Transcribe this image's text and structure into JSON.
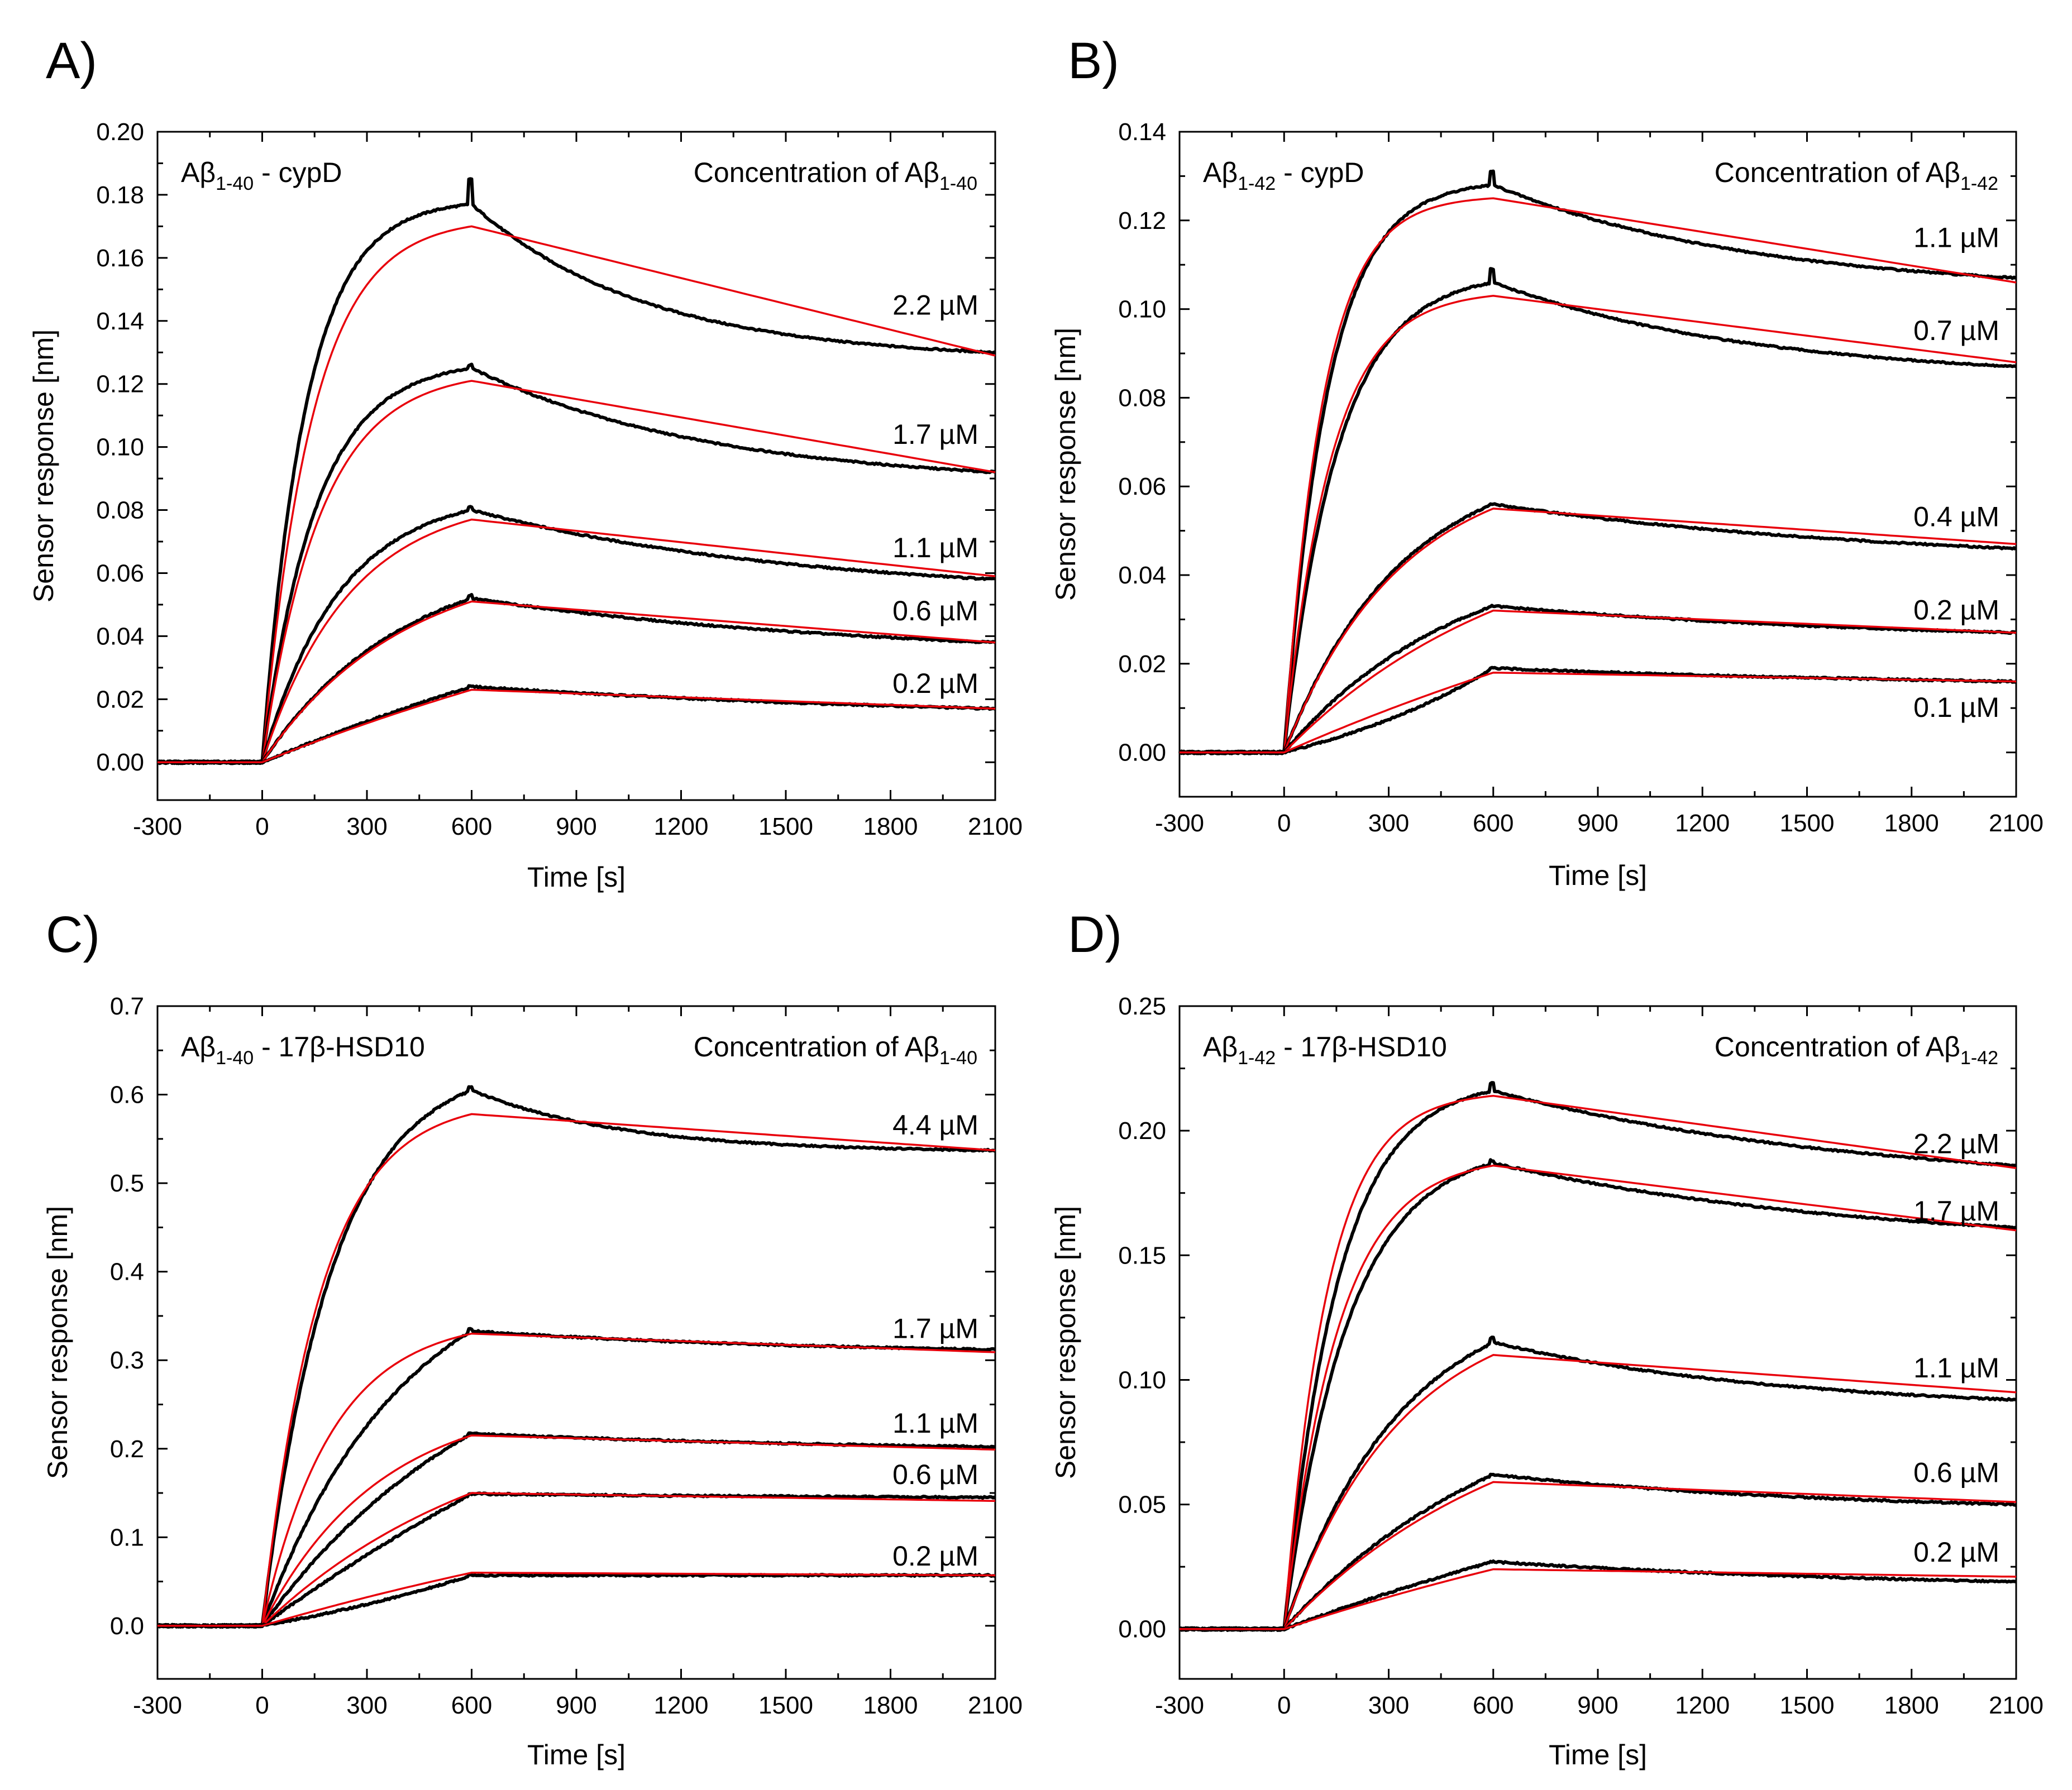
{
  "figure": {
    "description_colors": {
      "data": "#000000",
      "fit": "#e8000b"
    }
  },
  "chart_data": [
    {
      "type": "line",
      "panel": "A)",
      "label_main": "A",
      "label_beta": "β",
      "label_sub": "1-40",
      "label_suffix": " - cypD",
      "conc_title_main": "Concentration of A",
      "conc_title_beta": "β",
      "conc_title_sub": "1-40",
      "xlabel": "Time [s]",
      "ylabel": "Sensor response [nm]",
      "xlim": [
        -300,
        2100
      ],
      "ylim": [
        -0.012,
        0.2
      ],
      "xticks": [
        -300,
        0,
        300,
        600,
        900,
        1200,
        1500,
        1800,
        2100
      ],
      "xtick_labels": [
        "-300",
        "0",
        "300",
        "600",
        "900",
        "1200",
        "1500",
        "1800",
        "2100"
      ],
      "yticks": [
        0.0,
        0.02,
        0.04,
        0.06,
        0.08,
        0.1,
        0.12,
        0.14,
        0.16,
        0.18,
        0.2
      ],
      "ytick_labels": [
        "0.00",
        "0.02",
        "0.04",
        "0.06",
        "0.08",
        "0.10",
        "0.12",
        "0.14",
        "0.16",
        "0.18",
        "0.20"
      ],
      "series": [
        {
          "name": "2.2 µM",
          "label_value": "2.2",
          "label_unit": "µM",
          "label_y": 0.142,
          "assoc_end": 0.177,
          "fit_end": 0.17,
          "data_end": 0.13,
          "fit_final": 0.129,
          "spike": 0.185,
          "curve": 1.6,
          "fit_curve": 1.4,
          "data_decay": 3.0
        },
        {
          "name": "1.7 µM",
          "label_value": "1.7",
          "label_unit": "µM",
          "label_y": 0.101,
          "assoc_end": 0.125,
          "fit_end": 0.121,
          "data_end": 0.092,
          "fit_final": 0.092,
          "spike": 0.126,
          "curve": 1.3,
          "fit_curve": 1.2,
          "data_decay": 2.2
        },
        {
          "name": "1.1 µM",
          "label_value": "1.1",
          "label_unit": "µM",
          "label_y": 0.065,
          "assoc_end": 0.08,
          "fit_end": 0.077,
          "data_end": 0.058,
          "fit_final": 0.059,
          "spike": 0.081,
          "curve": 0.9,
          "fit_curve": 0.8,
          "data_decay": 1.6
        },
        {
          "name": "0.6 µM",
          "label_value": "0.6",
          "label_unit": "µM",
          "label_y": 0.045,
          "assoc_end": 0.052,
          "fit_end": 0.051,
          "data_end": 0.038,
          "fit_final": 0.038,
          "spike": 0.053,
          "curve": 0.5,
          "fit_curve": 0.5,
          "data_decay": 1.3
        },
        {
          "name": "0.2 µM",
          "label_value": "0.2",
          "label_unit": "µM",
          "label_y": 0.022,
          "assoc_end": 0.024,
          "fit_end": 0.023,
          "data_end": 0.017,
          "fit_final": 0.017,
          "spike": 0.024,
          "curve": 0.1,
          "fit_curve": 0.1,
          "data_decay": 1.0
        }
      ]
    },
    {
      "type": "line",
      "panel": "B)",
      "label_main": "A",
      "label_beta": "β",
      "label_sub": "1-42",
      "label_suffix": " - cypD",
      "conc_title_main": "Concentration of A",
      "conc_title_beta": "β",
      "conc_title_sub": "1-42",
      "xlabel": "Time [s]",
      "ylabel": "Sensor response [nm]",
      "xlim": [
        -300,
        2100
      ],
      "ylim": [
        -0.01,
        0.14
      ],
      "xticks": [
        -300,
        0,
        300,
        600,
        900,
        1200,
        1500,
        1800,
        2100
      ],
      "xtick_labels": [
        "-300",
        "0",
        "300",
        "600",
        "900",
        "1200",
        "1500",
        "1800",
        "2100"
      ],
      "yticks": [
        0.0,
        0.02,
        0.04,
        0.06,
        0.08,
        0.1,
        0.12,
        0.14
      ],
      "ytick_labels": [
        "0.00",
        "0.02",
        "0.04",
        "0.06",
        "0.08",
        "0.10",
        "0.12",
        "0.14"
      ],
      "series": [
        {
          "name": "1.1 µM",
          "label_value": "1.1",
          "label_unit": "µM",
          "label_y": 0.114,
          "assoc_end": 0.128,
          "fit_end": 0.125,
          "data_end": 0.107,
          "fit_final": 0.106,
          "spike": 0.131,
          "curve": 1.6,
          "fit_curve": 1.8,
          "data_decay": 2.0
        },
        {
          "name": "0.7 µM",
          "label_value": "0.7",
          "label_unit": "µM",
          "label_y": 0.093,
          "assoc_end": 0.106,
          "fit_end": 0.103,
          "data_end": 0.087,
          "fit_final": 0.088,
          "spike": 0.109,
          "curve": 1.3,
          "fit_curve": 1.5,
          "data_decay": 2.0
        },
        {
          "name": "0.4 µM",
          "label_value": "0.4",
          "label_unit": "µM",
          "label_y": 0.051,
          "assoc_end": 0.056,
          "fit_end": 0.055,
          "data_end": 0.046,
          "fit_final": 0.047,
          "spike": 0.056,
          "curve": 0.6,
          "fit_curve": 0.6,
          "data_decay": 1.3
        },
        {
          "name": "0.2 µM",
          "label_value": "0.2",
          "label_unit": "µM",
          "label_y": 0.03,
          "assoc_end": 0.033,
          "fit_end": 0.032,
          "data_end": 0.027,
          "fit_final": 0.027,
          "spike": 0.033,
          "curve": 0.4,
          "fit_curve": 0.3,
          "data_decay": 1.2
        },
        {
          "name": "0.1 µM",
          "label_value": "0.1",
          "label_unit": "µM",
          "label_y": 0.008,
          "assoc_end": 0.019,
          "fit_end": 0.018,
          "data_end": 0.016,
          "fit_final": 0.016,
          "spike": 0.019,
          "curve": -0.3,
          "fit_curve": 0.1,
          "data_decay": 1.0
        }
      ]
    },
    {
      "type": "line",
      "panel": "C)",
      "label_main": "A",
      "label_beta": "β",
      "label_sub": "1-40",
      "label_suffix": " - 17β-HSD10",
      "conc_title_main": "Concentration of A",
      "conc_title_beta": "β",
      "conc_title_sub": "1-40",
      "xlabel": "Time [s]",
      "ylabel": "Sensor response [nm]",
      "xlim": [
        -300,
        2100
      ],
      "ylim": [
        -0.06,
        0.7
      ],
      "xticks": [
        -300,
        0,
        300,
        600,
        900,
        1200,
        1500,
        1800,
        2100
      ],
      "xtick_labels": [
        "-300",
        "0",
        "300",
        "600",
        "900",
        "1200",
        "1500",
        "1800",
        "2100"
      ],
      "yticks": [
        0.0,
        0.1,
        0.2,
        0.3,
        0.4,
        0.5,
        0.6,
        0.7
      ],
      "ytick_labels": [
        "0.0",
        "0.1",
        "0.2",
        "0.3",
        "0.4",
        "0.5",
        "0.6",
        "0.7"
      ],
      "series": [
        {
          "name": "4.4 µM",
          "label_value": "4.4",
          "label_unit": "µM",
          "label_y": 0.555,
          "assoc_end": 0.605,
          "fit_end": 0.578,
          "data_end": 0.537,
          "fit_final": 0.537,
          "spike": 0.608,
          "curve": 1.0,
          "fit_curve": 1.2,
          "data_decay": 3.5
        },
        {
          "name": "1.7 µM",
          "label_value": "1.7",
          "label_unit": "µM",
          "label_y": 0.325,
          "assoc_end": 0.333,
          "fit_end": 0.33,
          "data_end": 0.312,
          "fit_final": 0.309,
          "spike": 0.335,
          "curve": 0.5,
          "fit_curve": 1.0,
          "data_decay": 1.5
        },
        {
          "name": "1.1 µM",
          "label_value": "1.1",
          "label_unit": "µM",
          "label_y": 0.218,
          "assoc_end": 0.217,
          "fit_end": 0.215,
          "data_end": 0.202,
          "fit_final": 0.199,
          "spike": 0.218,
          "curve": 0.3,
          "fit_curve": 0.6,
          "data_decay": 1.2
        },
        {
          "name": "0.6 µM",
          "label_value": "0.6",
          "label_unit": "µM",
          "label_y": 0.16,
          "assoc_end": 0.149,
          "fit_end": 0.15,
          "data_end": 0.145,
          "fit_final": 0.141,
          "spike": 0.149,
          "curve": 0.1,
          "fit_curve": 0.3,
          "data_decay": 1.0
        },
        {
          "name": "0.2 µM",
          "label_value": "0.2",
          "label_unit": "µM",
          "label_y": 0.068,
          "assoc_end": 0.057,
          "fit_end": 0.06,
          "data_end": 0.057,
          "fit_final": 0.057,
          "spike": 0.057,
          "curve": -0.2,
          "fit_curve": 0.1,
          "data_decay": 1.0
        }
      ]
    },
    {
      "type": "line",
      "panel": "D)",
      "label_main": "A",
      "label_beta": "β",
      "label_sub": "1-42",
      "label_suffix": " - 17β-HSD10",
      "conc_title_main": "Concentration of A",
      "conc_title_beta": "β",
      "conc_title_sub": "1-42",
      "xlabel": "Time [s]",
      "ylabel": "Sensor response [nm]",
      "xlim": [
        -300,
        2100
      ],
      "ylim": [
        -0.02,
        0.25
      ],
      "xticks": [
        -300,
        0,
        300,
        600,
        900,
        1200,
        1500,
        1800,
        2100
      ],
      "xtick_labels": [
        "-300",
        "0",
        "300",
        "600",
        "900",
        "1200",
        "1500",
        "1800",
        "2100"
      ],
      "yticks": [
        0.0,
        0.05,
        0.1,
        0.15,
        0.2,
        0.25
      ],
      "ytick_labels": [
        "0.00",
        "0.05",
        "0.10",
        "0.15",
        "0.20",
        "0.25"
      ],
      "series": [
        {
          "name": "2.2 µM",
          "label_value": "2.2",
          "label_unit": "µM",
          "label_y": 0.191,
          "assoc_end": 0.216,
          "fit_end": 0.214,
          "data_end": 0.186,
          "fit_final": 0.185,
          "spike": 0.219,
          "curve": 1.3,
          "fit_curve": 1.6,
          "data_decay": 1.4
        },
        {
          "name": "1.7 µM",
          "label_value": "1.7",
          "label_unit": "µM",
          "label_y": 0.164,
          "assoc_end": 0.187,
          "fit_end": 0.186,
          "data_end": 0.161,
          "fit_final": 0.16,
          "spike": 0.188,
          "curve": 1.1,
          "fit_curve": 1.3,
          "data_decay": 1.4
        },
        {
          "name": "1.1 µM",
          "label_value": "1.1",
          "label_unit": "µM",
          "label_y": 0.101,
          "assoc_end": 0.115,
          "fit_end": 0.11,
          "data_end": 0.092,
          "fit_final": 0.095,
          "spike": 0.117,
          "curve": 0.6,
          "fit_curve": 0.6,
          "data_decay": 1.8
        },
        {
          "name": "0.6 µM",
          "label_value": "0.6",
          "label_unit": "µM",
          "label_y": 0.059,
          "assoc_end": 0.062,
          "fit_end": 0.059,
          "data_end": 0.05,
          "fit_final": 0.051,
          "spike": 0.062,
          "curve": 0.3,
          "fit_curve": 0.3,
          "data_decay": 1.5
        },
        {
          "name": "0.2 µM",
          "label_value": "0.2",
          "label_unit": "µM",
          "label_y": 0.027,
          "assoc_end": 0.027,
          "fit_end": 0.024,
          "data_end": 0.019,
          "fit_final": 0.021,
          "spike": 0.027,
          "curve": 0.1,
          "fit_curve": 0.1,
          "data_decay": 1.2
        }
      ]
    }
  ]
}
